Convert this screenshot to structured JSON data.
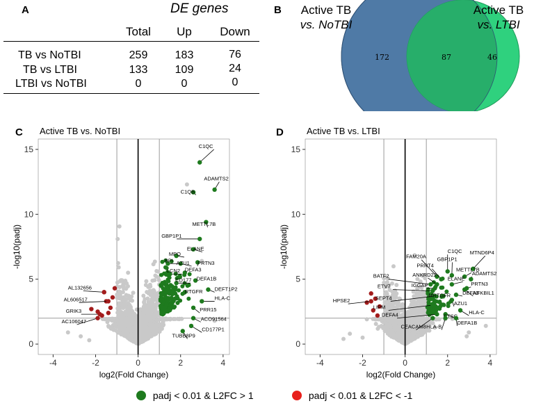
{
  "panel_a": {
    "letter": "A",
    "title": "DE genes",
    "columns": [
      "Total",
      "Up",
      "Down"
    ],
    "rows": [
      {
        "label": "TB vs NoTBI",
        "total": "259",
        "up": "183",
        "down": "76"
      },
      {
        "label": "TB vs LTBI",
        "total": "133",
        "up": "109",
        "down": "24"
      },
      {
        "label": "LTBI vs NoTBI",
        "total": "0",
        "up": "0",
        "down": "0"
      }
    ]
  },
  "panel_b": {
    "letter": "B",
    "left_label_1": "Active TB",
    "left_label_2": "vs. NoTBI",
    "right_label_1": "Active TB",
    "right_label_2": "vs. LTBI",
    "left_only": "172",
    "overlap": "87",
    "right_only": "46",
    "colors": {
      "left": "#4f7aa6",
      "right": "#2fd17e",
      "overlap": "#27ae6a"
    }
  },
  "legend": {
    "green_label": "padj < 0.01 & L2FC > 1",
    "red_label": "padj < 0.01 & L2FC < -1",
    "green_color": "#1e7a1e",
    "red_color": "#e8201c"
  },
  "chart_data": [
    {
      "type": "scatter",
      "letter": "C",
      "title": "Active TB vs. NoTBI",
      "xlabel": "log2(Fold Change)",
      "ylabel": "-log10(padj)",
      "xlim": [
        -4.7,
        4.3
      ],
      "ylim": [
        -0.8,
        15.8
      ],
      "xticks": [
        -4,
        -2,
        0,
        2,
        4
      ],
      "yticks": [
        0,
        5,
        10,
        15
      ],
      "vlines": [
        -1,
        1
      ],
      "zero_line": 0,
      "hline": 2,
      "seed": 11,
      "red_points": [
        [
          -1.5,
          3.3
        ],
        [
          -1.3,
          2.8
        ],
        [
          -1.6,
          4.0
        ],
        [
          -1.7,
          2.2
        ],
        [
          -1.2,
          3.6
        ],
        [
          -2.2,
          2.7
        ],
        [
          -1.9,
          2.5
        ],
        [
          -1.4,
          2.4
        ],
        [
          -1.1,
          4.3
        ]
      ],
      "labeled": [
        {
          "gene": "C1QC",
          "x": 2.9,
          "y": 14.0,
          "lx": 2.85,
          "ly": 15.0,
          "anchor": "start"
        },
        {
          "gene": "ADAMTS2",
          "x": 3.6,
          "y": 11.9,
          "lx": 3.1,
          "ly": 12.5,
          "anchor": "start"
        },
        {
          "gene": "C1QB",
          "x": 2.6,
          "y": 11.7,
          "lx": 2.0,
          "ly": 11.5,
          "anchor": "start"
        },
        {
          "gene": "METTL7B",
          "x": 3.2,
          "y": 9.4,
          "lx": 2.55,
          "ly": 9.0,
          "anchor": "start"
        },
        {
          "gene": "GBP1P1",
          "x": 2.9,
          "y": 8.1,
          "lx": 1.1,
          "ly": 8.1,
          "anchor": "start"
        },
        {
          "gene": "ELANE",
          "x": 2.6,
          "y": 7.3,
          "lx": 2.3,
          "ly": 7.1,
          "anchor": "start"
        },
        {
          "gene": "MPO",
          "x": 1.8,
          "y": 6.8,
          "lx": 1.45,
          "ly": 6.7,
          "anchor": "start"
        },
        {
          "gene": "AZU1",
          "x": 2.0,
          "y": 6.2,
          "lx": 1.8,
          "ly": 6.0,
          "anchor": "start"
        },
        {
          "gene": "PRTN3",
          "x": 2.8,
          "y": 6.3,
          "lx": 2.8,
          "ly": 6.0,
          "anchor": "start"
        },
        {
          "gene": "DEFA3",
          "x": 2.2,
          "y": 5.5,
          "lx": 2.2,
          "ly": 5.5,
          "anchor": "start"
        },
        {
          "gene": "DEFA1B",
          "x": 2.7,
          "y": 4.9,
          "lx": 2.75,
          "ly": 4.8,
          "anchor": "start"
        },
        {
          "gene": "CD177",
          "x": 1.8,
          "y": 4.7,
          "lx": 1.75,
          "ly": 4.7,
          "anchor": "start"
        },
        {
          "gene": "LCN2",
          "x": 1.5,
          "y": 5.4,
          "lx": 1.35,
          "ly": 5.4,
          "anchor": "start"
        },
        {
          "gene": "BPI",
          "x": 1.4,
          "y": 6.2,
          "lx": 1.25,
          "ly": 6.2,
          "anchor": "start"
        },
        {
          "gene": "DEFT1P2",
          "x": 3.3,
          "y": 4.2,
          "lx": 3.6,
          "ly": 4.0,
          "anchor": "start"
        },
        {
          "gene": "RTGFR",
          "x": 2.2,
          "y": 4.0,
          "lx": 2.2,
          "ly": 3.8,
          "anchor": "start"
        },
        {
          "gene": "HLA-C",
          "x": 3.0,
          "y": 3.3,
          "lx": 3.6,
          "ly": 3.3,
          "anchor": "start"
        },
        {
          "gene": "PRR15",
          "x": 2.6,
          "y": 2.8,
          "lx": 2.9,
          "ly": 2.4,
          "anchor": "start"
        },
        {
          "gene": "ACO91564",
          "x": 2.6,
          "y": 2.0,
          "lx": 2.95,
          "ly": 1.7,
          "anchor": "start"
        },
        {
          "gene": "CD177P1",
          "x": 2.5,
          "y": 1.4,
          "lx": 3.0,
          "ly": 0.9,
          "anchor": "start"
        },
        {
          "gene": "TUBB8P9",
          "x": 2.1,
          "y": 1.0,
          "lx": 1.6,
          "ly": 0.4,
          "anchor": "start"
        },
        {
          "gene": "AL132656",
          "x": -1.6,
          "y": 4.0,
          "lx": -3.3,
          "ly": 4.1,
          "anchor": "start"
        },
        {
          "gene": "AL606517",
          "x": -1.4,
          "y": 3.3,
          "lx": -3.5,
          "ly": 3.2,
          "anchor": "start"
        },
        {
          "gene": "GRIK3",
          "x": -1.8,
          "y": 2.3,
          "lx": -3.4,
          "ly": 2.3,
          "anchor": "start"
        },
        {
          "gene": "AC106047",
          "x": -1.9,
          "y": 2.0,
          "lx": -3.6,
          "ly": 1.5,
          "anchor": "start"
        }
      ]
    },
    {
      "type": "scatter",
      "letter": "D",
      "title": "Active TB vs. LTBI",
      "xlabel": "log2(Fold Change)",
      "ylabel": "-log10(padj)",
      "xlim": [
        -4.7,
        4.3
      ],
      "ylim": [
        -0.8,
        15.8
      ],
      "xticks": [
        -4,
        -2,
        0,
        2,
        4
      ],
      "yticks": [
        0,
        5,
        10,
        15
      ],
      "vlines": [
        -1,
        1
      ],
      "zero_line": 0,
      "hline": 2,
      "seed": 29,
      "red_points": [
        [
          -1.8,
          3.2
        ],
        [
          -1.5,
          2.6
        ],
        [
          -1.3,
          2.2
        ],
        [
          -1.6,
          3.9
        ],
        [
          -1.2,
          2.9
        ],
        [
          -1.4,
          3.5
        ]
      ],
      "labeled": [
        {
          "gene": "MTND6P4",
          "x": 3.2,
          "y": 5.8,
          "lx": 3.05,
          "ly": 6.8,
          "anchor": "start"
        },
        {
          "gene": "FAM20A",
          "x": 1.5,
          "y": 5.2,
          "lx": 0.05,
          "ly": 6.5,
          "anchor": "start"
        },
        {
          "gene": "C1QC",
          "x": 2.0,
          "y": 5.6,
          "lx": 2.0,
          "ly": 6.9,
          "anchor": "start"
        },
        {
          "gene": "GBP1P1",
          "x": 2.2,
          "y": 5.3,
          "lx": 1.5,
          "ly": 6.3,
          "anchor": "start"
        },
        {
          "gene": "PRRT4",
          "x": 1.7,
          "y": 5.0,
          "lx": 0.55,
          "ly": 5.8,
          "anchor": "start"
        },
        {
          "gene": "ADAMTS2",
          "x": 3.1,
          "y": 5.0,
          "lx": 3.15,
          "ly": 5.2,
          "anchor": "start"
        },
        {
          "gene": "METTL7B",
          "x": 2.8,
          "y": 5.2,
          "lx": 2.4,
          "ly": 5.5,
          "anchor": "start"
        },
        {
          "gene": "BATF2",
          "x": 1.2,
          "y": 4.6,
          "lx": -1.5,
          "ly": 5.0,
          "anchor": "start"
        },
        {
          "gene": "ANKRD22",
          "x": 1.5,
          "y": 4.6,
          "lx": 0.35,
          "ly": 5.1,
          "anchor": "start"
        },
        {
          "gene": "ELANE",
          "x": 2.2,
          "y": 4.6,
          "lx": 2.0,
          "ly": 4.8,
          "anchor": "start"
        },
        {
          "gene": "PRTN3",
          "x": 2.9,
          "y": 4.3,
          "lx": 3.1,
          "ly": 4.4,
          "anchor": "start"
        },
        {
          "gene": "NFKBIL1",
          "x": 2.8,
          "y": 4.2,
          "lx": 3.2,
          "ly": 3.7,
          "anchor": "start"
        },
        {
          "gene": "IGGAP",
          "x": 1.4,
          "y": 4.3,
          "lx": 0.3,
          "ly": 4.3,
          "anchor": "start"
        },
        {
          "gene": "ETV7",
          "x": 1.3,
          "y": 4.1,
          "lx": -1.3,
          "ly": 4.2,
          "anchor": "start"
        },
        {
          "gene": "SEPT4",
          "x": 1.4,
          "y": 3.7,
          "lx": -1.4,
          "ly": 3.3,
          "anchor": "start"
        },
        {
          "gene": "MRTGFR",
          "x": 1.8,
          "y": 3.7,
          "lx": 1.1,
          "ly": 3.5,
          "anchor": "start"
        },
        {
          "gene": "DEFA3",
          "x": 2.4,
          "y": 3.8,
          "lx": 2.7,
          "ly": 3.7,
          "anchor": "start"
        },
        {
          "gene": "AZU1",
          "x": 2.2,
          "y": 3.4,
          "lx": 2.3,
          "ly": 2.9,
          "anchor": "start"
        },
        {
          "gene": "LIPM",
          "x": 1.3,
          "y": 3.0,
          "lx": -1.5,
          "ly": 2.6,
          "anchor": "start"
        },
        {
          "gene": "HLA-C",
          "x": 2.6,
          "y": 2.6,
          "lx": 3.0,
          "ly": 2.2,
          "anchor": "start"
        },
        {
          "gene": "DEFA4",
          "x": 1.5,
          "y": 2.3,
          "lx": -1.1,
          "ly": 2.0,
          "anchor": "start"
        },
        {
          "gene": "CTSG",
          "x": 1.9,
          "y": 2.3,
          "lx": 1.8,
          "ly": 1.9,
          "anchor": "start"
        },
        {
          "gene": "CEACAM8",
          "x": 1.3,
          "y": 2.0,
          "lx": -0.2,
          "ly": 1.1,
          "anchor": "start"
        },
        {
          "gene": "HLA-B",
          "x": 1.9,
          "y": 2.0,
          "lx": 1.0,
          "ly": 1.1,
          "anchor": "start"
        },
        {
          "gene": "DEFA1B",
          "x": 2.4,
          "y": 2.0,
          "lx": 2.45,
          "ly": 1.4,
          "anchor": "start"
        },
        {
          "gene": "HPSE2",
          "x": -1.6,
          "y": 3.3,
          "lx": -3.4,
          "ly": 3.1,
          "anchor": "start"
        }
      ]
    }
  ]
}
